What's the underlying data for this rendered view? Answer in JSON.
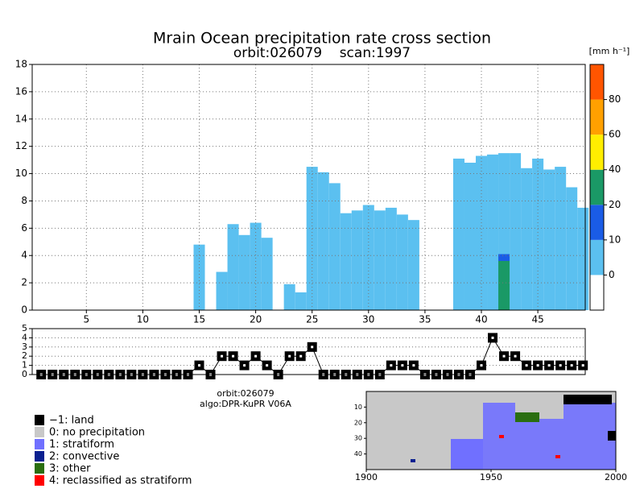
{
  "chart_data": {
    "type": "cross-section",
    "title": "Mrain Ocean precipitation rate cross section",
    "subtitle": "orbit:026079    scan:1997",
    "main": {
      "xlim": [
        0.2,
        49.2
      ],
      "ylim": [
        0,
        18
      ],
      "xticks": [
        5,
        10,
        15,
        20,
        25,
        30,
        35,
        40,
        45
      ],
      "yticks": [
        0,
        2,
        4,
        6,
        8,
        10,
        12,
        14,
        16,
        18
      ],
      "grid": true,
      "color": "#5bc0f0",
      "x": [
        15,
        17,
        18,
        19,
        20,
        21,
        23,
        24,
        25,
        26,
        27,
        28,
        29,
        30,
        31,
        32,
        33,
        34,
        38,
        39,
        40,
        41,
        42,
        43,
        44,
        45,
        46,
        47,
        48,
        49
      ],
      "top": [
        4.8,
        2.8,
        6.3,
        5.5,
        6.4,
        5.3,
        1.9,
        1.3,
        10.5,
        10.1,
        9.3,
        7.1,
        7.3,
        7.7,
        7.3,
        7.5,
        7.0,
        6.6,
        11.1,
        10.8,
        11.3,
        11.4,
        11.5,
        11.5,
        10.4,
        11.1,
        10.3,
        10.5,
        9.0,
        7.5
      ],
      "cells": [
        {
          "x": 42,
          "bottom": 0,
          "top": 3.6,
          "color": "#1a9966"
        },
        {
          "x": 42,
          "bottom": 3.6,
          "top": 4.1,
          "color": "#1a5ce6"
        }
      ]
    },
    "colorbar": {
      "unit": "[mm h⁻¹]",
      "colors": [
        "#ffffff",
        "#5bc0f0",
        "#1a5ce6",
        "#1a9966",
        "#ffee00",
        "#ffa000",
        "#ff5500"
      ],
      "labels": [
        0,
        10,
        20,
        40,
        60,
        80
      ]
    },
    "type_panel": {
      "ylim": [
        0,
        5
      ],
      "yticks": [
        0,
        1,
        2,
        3,
        4,
        5
      ],
      "x": [
        1,
        2,
        3,
        4,
        5,
        6,
        7,
        8,
        9,
        10,
        11,
        12,
        13,
        14,
        15,
        16,
        17,
        18,
        19,
        20,
        21,
        22,
        23,
        24,
        25,
        26,
        27,
        28,
        29,
        30,
        31,
        32,
        33,
        34,
        35,
        36,
        37,
        38,
        39,
        40,
        41,
        42,
        43,
        44,
        45,
        46,
        47,
        48,
        49
      ],
      "values": [
        0,
        0,
        0,
        0,
        0,
        0,
        0,
        0,
        0,
        0,
        0,
        0,
        0,
        0,
        1,
        0,
        2,
        2,
        1,
        2,
        1,
        0,
        2,
        2,
        3,
        0,
        0,
        0,
        0,
        0,
        0,
        1,
        1,
        1,
        0,
        0,
        0,
        0,
        0,
        1,
        4,
        2,
        2,
        1,
        1,
        1,
        1,
        1,
        1
      ]
    },
    "info": [
      "orbit:026079",
      "algo:DPR-KuPR V06A"
    ],
    "legend": [
      {
        "name": "−1: land",
        "color": "#000000"
      },
      {
        "name": "0: no precipitation",
        "color": "#c8c8c8"
      },
      {
        "name": "1: stratiform",
        "color": "#7070ff"
      },
      {
        "name": "2: convective",
        "color": "#0a2090"
      },
      {
        "name": "3: other",
        "color": "#2a6e10"
      },
      {
        "name": "4: reclassified as stratiform",
        "color": "#ff0000"
      }
    ],
    "inset": {
      "xlim": [
        1900,
        2000
      ],
      "xticks": [
        1900,
        1950,
        2000
      ],
      "ylim": [
        0,
        50
      ],
      "yticks": [
        10,
        20,
        30,
        40
      ]
    }
  }
}
